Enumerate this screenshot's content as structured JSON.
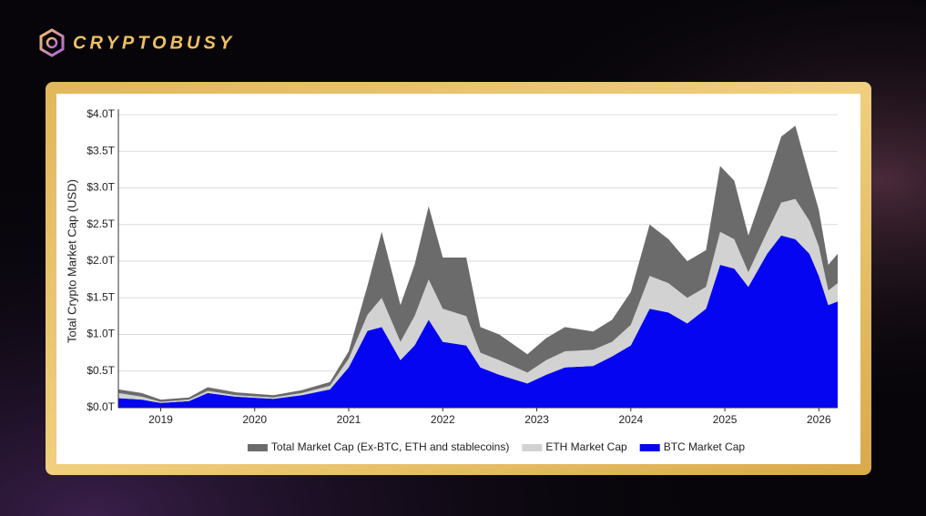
{
  "brand": "CRYPTOBUSY",
  "chart_data": {
    "type": "stacked-area",
    "y_label": "Total Crypto Market Cap (USD)",
    "x": [
      2018.55,
      2018.8,
      2019.0,
      2019.3,
      2019.5,
      2019.8,
      2020.2,
      2020.5,
      2020.8,
      2021.0,
      2021.2,
      2021.35,
      2021.55,
      2021.7,
      2021.85,
      2022.0,
      2022.25,
      2022.4,
      2022.6,
      2022.9,
      2023.1,
      2023.3,
      2023.6,
      2023.8,
      2024.0,
      2024.2,
      2024.4,
      2024.6,
      2024.8,
      2024.95,
      2025.1,
      2025.25,
      2025.45,
      2025.6,
      2025.75,
      2025.9,
      2026.0,
      2026.1,
      2026.2
    ],
    "series": [
      {
        "name": "Total Market Cap (Ex-BTC, ETH and stablecoins)",
        "color": "#6b6b6b",
        "values": [
          0.05,
          0.05,
          0.03,
          0.03,
          0.05,
          0.04,
          0.03,
          0.04,
          0.05,
          0.1,
          0.4,
          0.9,
          0.5,
          0.7,
          1.0,
          0.7,
          0.8,
          0.35,
          0.35,
          0.25,
          0.3,
          0.33,
          0.25,
          0.3,
          0.45,
          0.7,
          0.6,
          0.5,
          0.5,
          0.9,
          0.8,
          0.5,
          0.7,
          0.9,
          1.0,
          0.6,
          0.5,
          0.35,
          0.4
        ]
      },
      {
        "name": "ETH Market Cap",
        "color": "#d2d2d2",
        "values": [
          0.07,
          0.04,
          0.015,
          0.02,
          0.03,
          0.02,
          0.02,
          0.03,
          0.05,
          0.12,
          0.22,
          0.4,
          0.25,
          0.4,
          0.55,
          0.45,
          0.4,
          0.2,
          0.2,
          0.15,
          0.2,
          0.22,
          0.22,
          0.2,
          0.28,
          0.45,
          0.4,
          0.35,
          0.3,
          0.45,
          0.4,
          0.2,
          0.3,
          0.45,
          0.55,
          0.45,
          0.4,
          0.2,
          0.25
        ]
      },
      {
        "name": "BTC Market Cap",
        "color": "#0505f2",
        "values": [
          0.13,
          0.11,
          0.065,
          0.09,
          0.2,
          0.15,
          0.12,
          0.17,
          0.25,
          0.55,
          1.05,
          1.1,
          0.65,
          0.85,
          1.2,
          0.9,
          0.85,
          0.55,
          0.45,
          0.33,
          0.45,
          0.55,
          0.57,
          0.7,
          0.85,
          1.35,
          1.3,
          1.15,
          1.35,
          1.95,
          1.9,
          1.65,
          2.1,
          2.35,
          2.3,
          2.1,
          1.8,
          1.4,
          1.45
        ]
      }
    ],
    "xlim": [
      2018.55,
      2026.2
    ],
    "xticks": [
      2019,
      2020,
      2021,
      2022,
      2023,
      2024,
      2025,
      2026
    ],
    "ylim": [
      0,
      4
    ],
    "yticks": [
      {
        "value": 0,
        "label": "$0.0T"
      },
      {
        "value": 0.5,
        "label": "$0.5T"
      },
      {
        "value": 1,
        "label": "$1.0T"
      },
      {
        "value": 1.5,
        "label": "$1.5T"
      },
      {
        "value": 2,
        "label": "$2.0T"
      },
      {
        "value": 2.5,
        "label": "$2.5T"
      },
      {
        "value": 3,
        "label": "$3.0T"
      },
      {
        "value": 3.5,
        "label": "$3.5T"
      },
      {
        "value": 4,
        "label": "$4.0T"
      }
    ],
    "grid": true,
    "legend": "bottom"
  }
}
